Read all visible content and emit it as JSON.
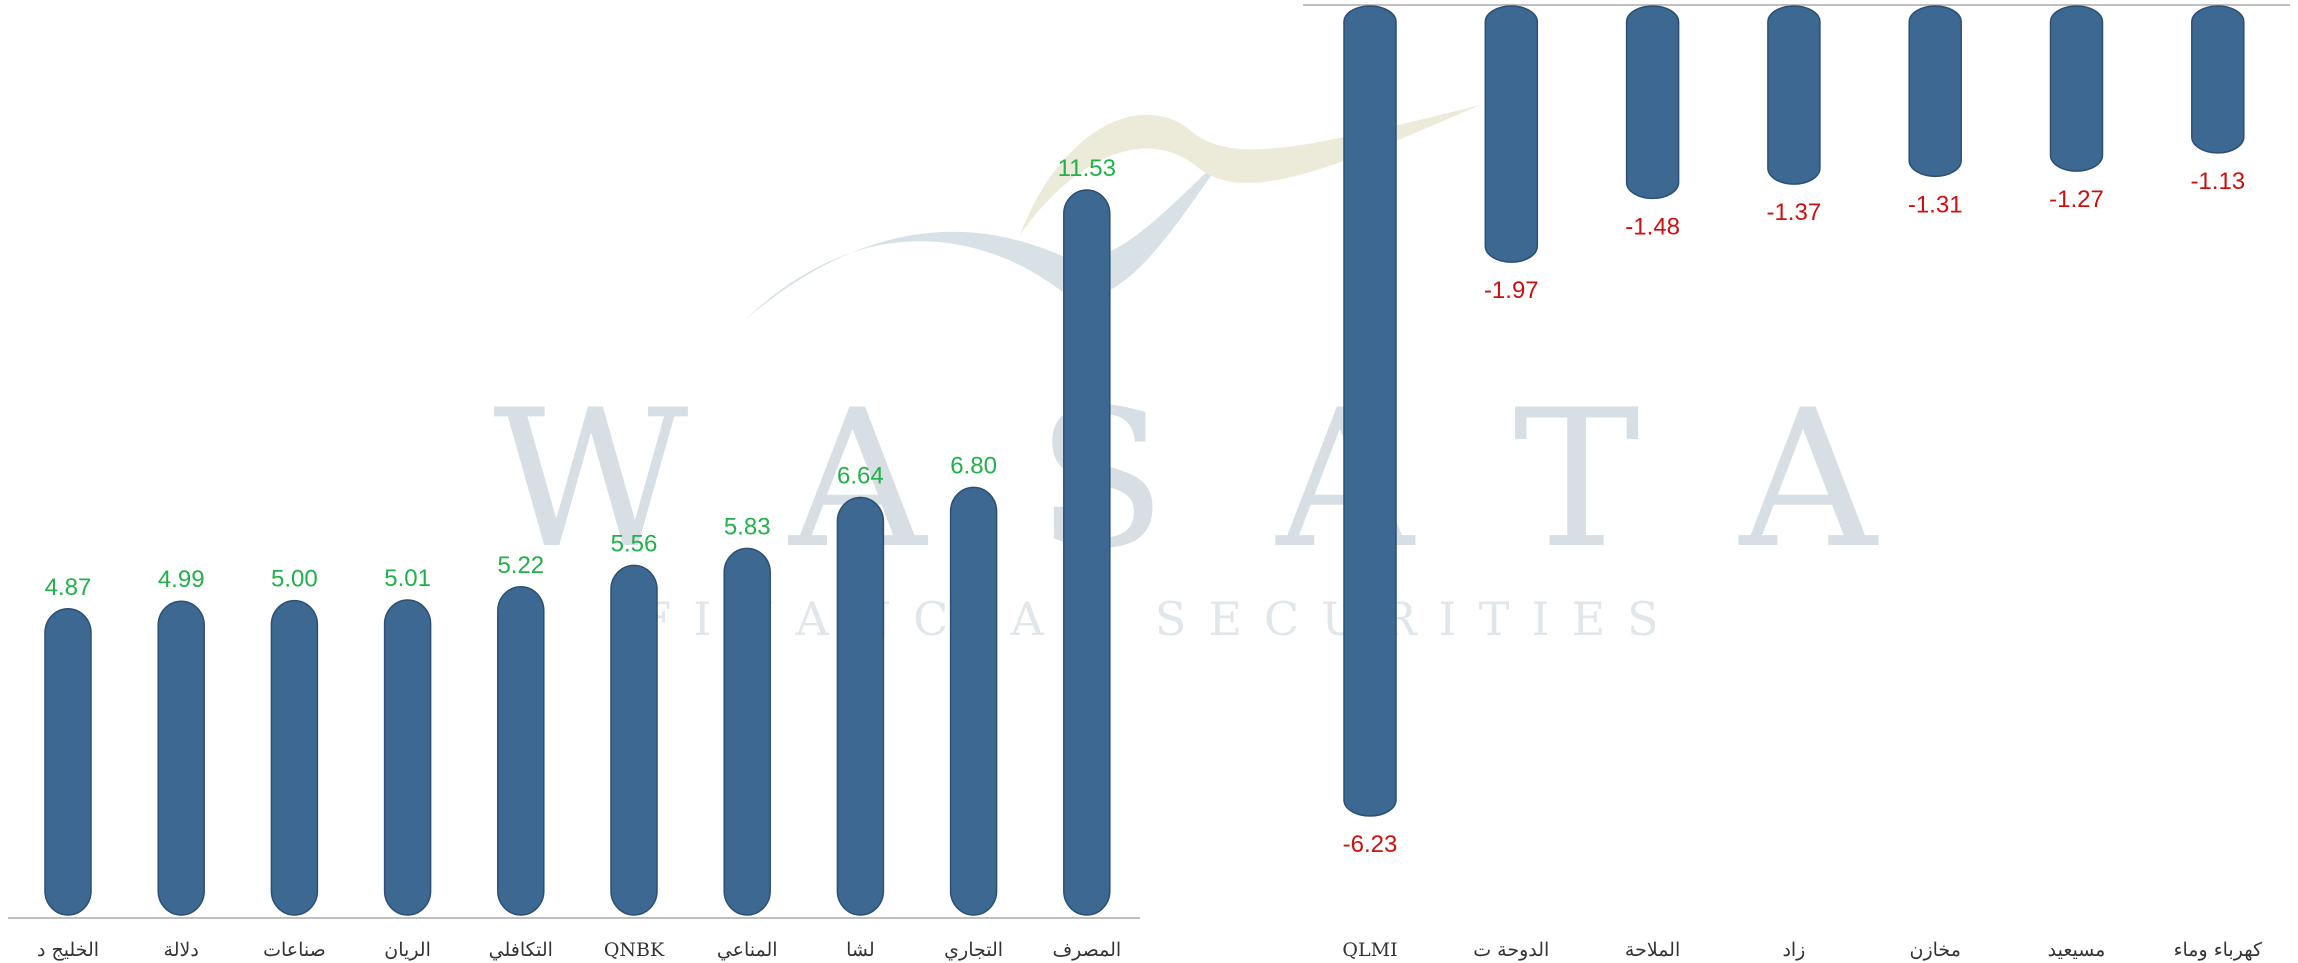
{
  "watermark": {
    "brand": "WASATA",
    "tagline": "FINANCIAL SECURITIES"
  },
  "colors": {
    "bar": "#3d6891",
    "bar_outline": "#2c4f73",
    "positive_label": "#22b04a",
    "negative_label": "#cc1010",
    "axis": "#bfbfbf"
  },
  "chart_data": [
    {
      "type": "bar",
      "categories": [
        "الخليج د",
        "دلالة",
        "صناعات",
        "الريان",
        "التكافلي",
        "QNBK",
        "المناعي",
        "لشا",
        "التجاري",
        "المصرف"
      ],
      "values": [
        4.87,
        4.99,
        5.0,
        5.01,
        5.22,
        5.56,
        5.83,
        6.64,
        6.8,
        11.53
      ],
      "labels": [
        "4.87",
        "4.99",
        "5.00",
        "5.01",
        "5.22",
        "5.56",
        "5.83",
        "6.64",
        "6.80",
        "11.53"
      ],
      "ylim": [
        0,
        11.53
      ],
      "grid": false,
      "legend": "none"
    },
    {
      "type": "bar",
      "categories": [
        "QLMI",
        "الدوحة ت",
        "الملاحة",
        "زاد",
        "مخازن",
        "مسيعيد",
        "كهرباء وماء"
      ],
      "values": [
        -6.23,
        -1.97,
        -1.48,
        -1.37,
        -1.31,
        -1.27,
        -1.13
      ],
      "labels": [
        "-6.23",
        "-1.97",
        "-1.48",
        "-1.37",
        "-1.31",
        "-1.27",
        "-1.13"
      ],
      "ylim": [
        -6.23,
        0
      ],
      "grid": false,
      "legend": "none"
    }
  ]
}
